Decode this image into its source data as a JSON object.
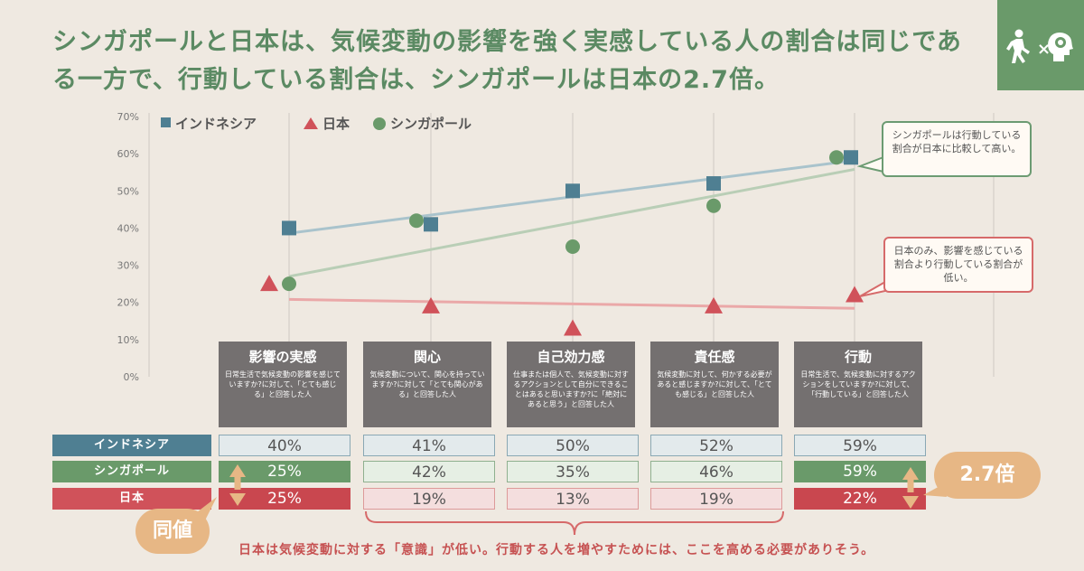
{
  "headline": "シンガポールと日本は、気候変動の影響を強く実感している人の割合は同じである一方で、行動している割合は、シンガポールは日本の2.7倍。",
  "logo": {
    "icons": [
      "walking-person-icon",
      "brain-head-icon"
    ],
    "times": "×"
  },
  "colors": {
    "indonesia": "#4f7f92",
    "singapore": "#6a9a6a",
    "japan": "#d0525a",
    "accent": "#e7b785",
    "card": "#747070"
  },
  "chart_data": {
    "type": "scatter",
    "categories": [
      "影響の実感",
      "関心",
      "自己効力感",
      "責任感",
      "行動"
    ],
    "ylim": [
      0,
      70
    ],
    "yticks": [
      "0%",
      "10%",
      "20%",
      "30%",
      "40%",
      "50%",
      "60%",
      "70%"
    ],
    "legend_position": "top-left",
    "trend_lines": true,
    "series": [
      {
        "name": "インドネシア",
        "marker": "square",
        "color": "#4f7f92",
        "values": [
          40,
          41,
          50,
          52,
          59
        ]
      },
      {
        "name": "日本",
        "marker": "triangle",
        "color": "#d0525a",
        "values": [
          25,
          19,
          13,
          19,
          22
        ]
      },
      {
        "name": "シンガポール",
        "marker": "circle",
        "color": "#6a9a6a",
        "values": [
          25,
          42,
          35,
          46,
          59
        ]
      }
    ]
  },
  "callouts": {
    "singapore": "シンガポールは行動している割合が日本に比較して高い。",
    "japan": "日本のみ、影響を感じている割合より行動している割合が低い。"
  },
  "cards": [
    {
      "title": "影響の実感",
      "desc": "日常生活で気候変動の影響を感じていますか?に対して、「とても感じる」と回答した人"
    },
    {
      "title": "関心",
      "desc": "気候変動について、関心を持っていますか?に対して「とても関心がある」と回答した人"
    },
    {
      "title": "自己効力感",
      "desc": "仕事または個人で、気候変動に対するアクションとして自分にできることはあると思いますか?に「絶対にあると思う」と回答した人"
    },
    {
      "title": "責任感",
      "desc": "気候変動に対して、何かする必要があると感じますか?に対して、「とても感じる」と回答した人"
    },
    {
      "title": "行動",
      "desc": "日常生活で、気候変動に対するアクションをしていますか?に対して、「行動している」と回答した人"
    }
  ],
  "table": {
    "rows": [
      {
        "label": "インドネシア",
        "values": [
          "40%",
          "41%",
          "50%",
          "52%",
          "59%"
        ]
      },
      {
        "label": "シンガポール",
        "values": [
          "25%",
          "42%",
          "35%",
          "46%",
          "59%"
        ]
      },
      {
        "label": "日本",
        "values": [
          "25%",
          "19%",
          "13%",
          "19%",
          "22%"
        ]
      }
    ]
  },
  "badges": {
    "same": "同値",
    "ratio": "2.7倍"
  },
  "footnote": "日本は気候変動に対する「意識」が低い。行動する人を増やすためには、ここを高める必要がありそう。"
}
